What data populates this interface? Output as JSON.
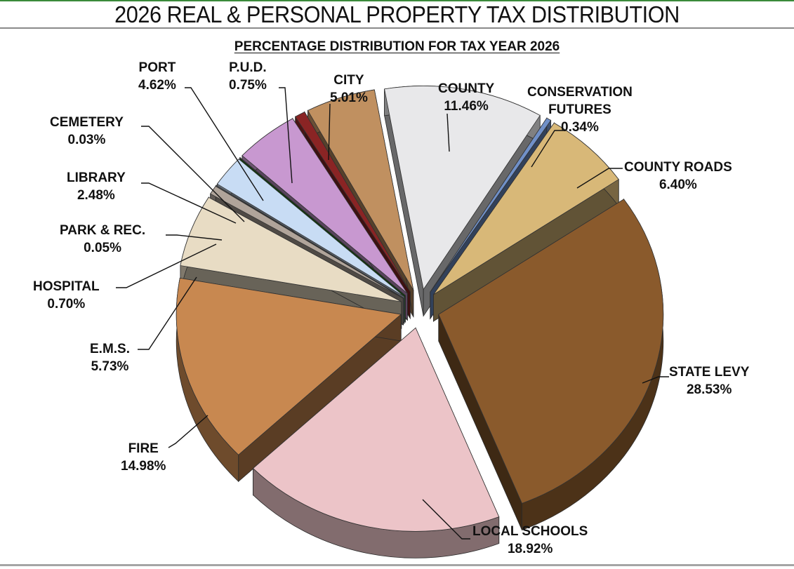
{
  "header": {
    "title": "2026 REAL & PERSONAL PROPERTY TAX DISTRIBUTION",
    "subtitle": "PERCENTAGE DISTRIBUTION FOR TAX YEAR 2026"
  },
  "labels": {
    "county": {
      "name": "COUNTY",
      "value": "11.46%"
    },
    "conservation_futures": {
      "name_line1": "CONSERVATION",
      "name_line2": "FUTURES",
      "value": "0.34%"
    },
    "county_roads": {
      "name": "COUNTY ROADS",
      "value": "6.40%"
    },
    "state_levy": {
      "name": "STATE LEVY",
      "value": "28.53%"
    },
    "local_schools": {
      "name": "LOCAL SCHOOLS",
      "value": "18.92%"
    },
    "fire": {
      "name": "FIRE",
      "value": "14.98%"
    },
    "ems": {
      "name": "E.M.S.",
      "value": "5.73%"
    },
    "hospital": {
      "name": "HOSPITAL",
      "value": "0.70%"
    },
    "park_rec": {
      "name": "PARK & REC.",
      "value": "0.05%"
    },
    "library": {
      "name": "LIBRARY",
      "value": "2.48%"
    },
    "cemetery": {
      "name": "CEMETERY",
      "value": "0.03%"
    },
    "port": {
      "name": "PORT",
      "value": "4.62%"
    },
    "pud": {
      "name": "P.U.D.",
      "value": "0.75%"
    },
    "city": {
      "name": "CITY",
      "value": "5.01%"
    }
  },
  "colors": {
    "county": "#e8e8ea",
    "conservation_futures": "#7090c8",
    "county_roads": "#d8b878",
    "state_levy": "#8a5a2c",
    "local_schools": "#ecc4c8",
    "fire": "#c88850",
    "ems": "#e8dcc4",
    "hospital": "#b0a49a",
    "park_rec": "#c8d8f0",
    "library": "#c8dcf4",
    "cemetery": "#1a7a1a",
    "port": "#c898d0",
    "pud": "#8a2424",
    "city": "#c09060"
  },
  "chart_data": {
    "type": "pie",
    "title": "2026 REAL & PERSONAL PROPERTY TAX DISTRIBUTION",
    "subtitle": "PERCENTAGE DISTRIBUTION FOR TAX YEAR 2026",
    "style": "3D exploded pie",
    "categories": [
      "COUNTY",
      "CONSERVATION FUTURES",
      "COUNTY ROADS",
      "STATE LEVY",
      "LOCAL SCHOOLS",
      "FIRE",
      "E.M.S.",
      "HOSPITAL",
      "PARK & REC.",
      "LIBRARY",
      "CEMETERY",
      "PORT",
      "P.U.D.",
      "CITY"
    ],
    "values": [
      11.46,
      0.34,
      6.4,
      28.53,
      18.92,
      14.98,
      5.73,
      0.7,
      0.05,
      2.48,
      0.03,
      4.62,
      0.75,
      5.01
    ],
    "unit": "%",
    "legend": "none (leader-line labels)"
  }
}
